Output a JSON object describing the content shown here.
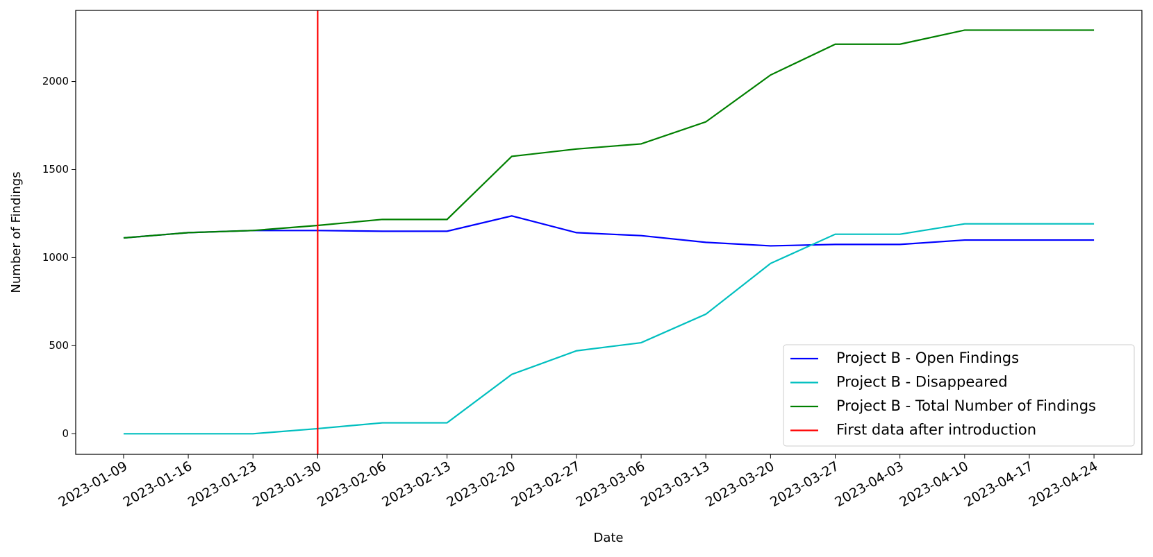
{
  "chart_data": {
    "type": "line",
    "x_label": "Date",
    "y_label": "Number of Findings",
    "x": [
      "2023-01-09",
      "2023-01-16",
      "2023-01-23",
      "2023-01-30",
      "2023-02-06",
      "2023-02-13",
      "2023-02-20",
      "2023-02-27",
      "2023-03-06",
      "2023-03-13",
      "2023-03-20",
      "2023-03-27",
      "2023-04-03",
      "2023-04-10",
      "2023-04-17",
      "2023-04-24"
    ],
    "series": [
      {
        "name": "Project B - Open Findings",
        "color": "#0000ff",
        "values": [
          1112,
          1142,
          1154,
          1154,
          1150,
          1150,
          1237,
          1142,
          1125,
          1087,
          1067,
          1075,
          1075,
          1100,
          1100,
          1100
        ]
      },
      {
        "name": "Project B - Disappeared",
        "color": "#00bfbf",
        "values": [
          0,
          0,
          0,
          29,
          62,
          62,
          337,
          471,
          517,
          679,
          967,
          1133,
          1133,
          1192,
          1192,
          1192
        ]
      },
      {
        "name": "Project B - Total Number of Findings",
        "color": "#008000",
        "values": [
          1112,
          1142,
          1154,
          1183,
          1217,
          1217,
          1575,
          1617,
          1646,
          1771,
          2037,
          2212,
          2212,
          2292,
          2292,
          2292
        ]
      }
    ],
    "vline": {
      "x": "2023-01-30",
      "name": "First data after introduction",
      "color": "#ff0000"
    },
    "ylim": [
      -117,
      2404
    ],
    "yticks": [
      0,
      500,
      1000,
      1500,
      2000
    ],
    "grid": false,
    "legend": "lower right"
  }
}
